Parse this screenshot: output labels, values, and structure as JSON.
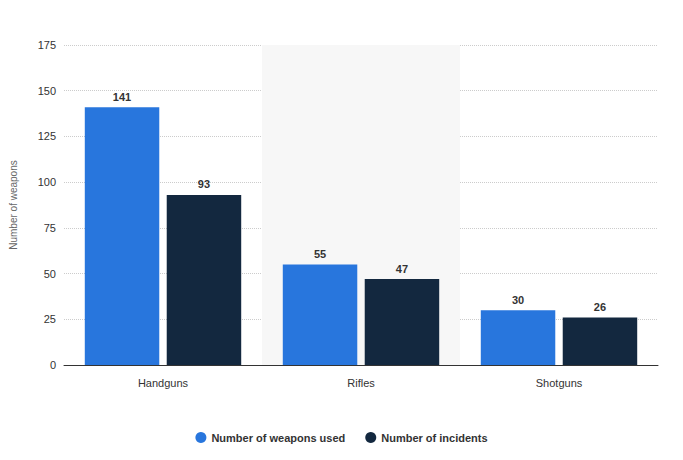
{
  "chart_data": {
    "type": "bar",
    "categories": [
      "Handguns",
      "Rifles",
      "Shotguns"
    ],
    "series": [
      {
        "name": "Number of weapons used",
        "color": "#2876dd",
        "values": [
          141,
          55,
          30
        ]
      },
      {
        "name": "Number of incidents",
        "color": "#13283f",
        "values": [
          93,
          47,
          26
        ]
      }
    ],
    "y_label": "Number of weapons",
    "ylim": [
      0,
      175
    ],
    "yticks": [
      0,
      25,
      50,
      75,
      100,
      125,
      150,
      175
    ],
    "grid": true,
    "legend": "bottom",
    "data_labels": true
  }
}
